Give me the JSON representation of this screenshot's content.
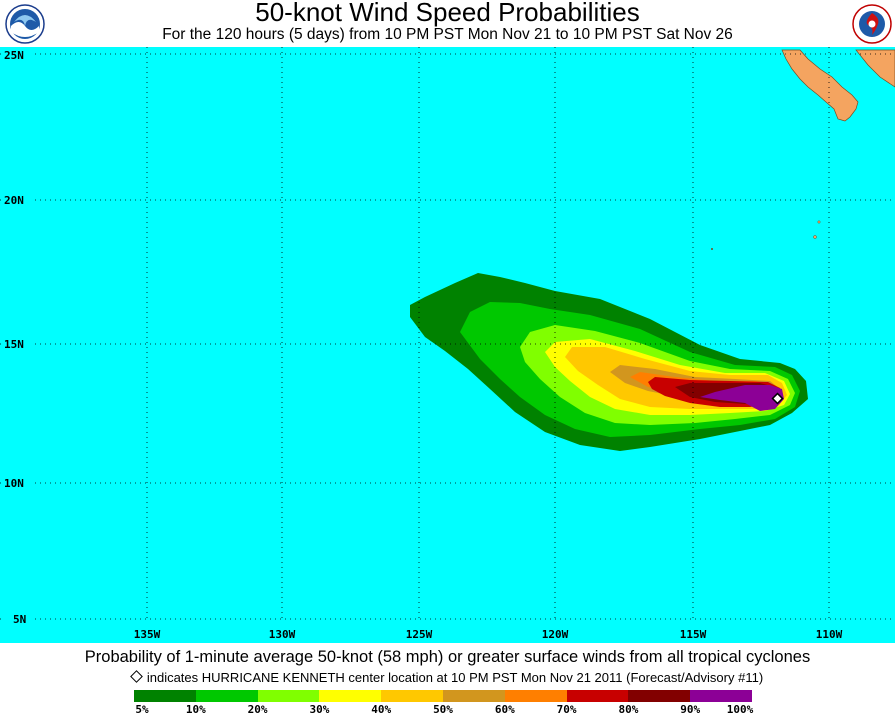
{
  "title": "50-knot Wind Speed Probabilities",
  "subtitle": "For the 120 hours (5 days) from 10 PM PST Mon Nov 21 to 10 PM PST Sat Nov 26",
  "logos": {
    "left": "noaa-logo",
    "right": "nws-logo"
  },
  "map": {
    "ocean_color": "#00ffff",
    "land_color": "#f4a460",
    "lat_labels": [
      "25N",
      "20N",
      "15N",
      "10N",
      "5N"
    ],
    "lon_labels": [
      "135W",
      "130W",
      "125W",
      "120W",
      "115W",
      "110W"
    ],
    "storm_marker": {
      "name": "HURRICANE KENNETH",
      "lon": -112,
      "lat": 13,
      "icon": "diamond-icon"
    }
  },
  "caption": "Probability of 1-minute average 50-knot (58 mph) or greater surface winds from all tropical cyclones",
  "note": "indicates HURRICANE KENNETH center location at 10 PM PST Mon Nov 21 2011 (Forecast/Advisory #11)",
  "legend": {
    "bins": [
      {
        "color": "#008200"
      },
      {
        "color": "#00c800"
      },
      {
        "color": "#80ff00"
      },
      {
        "color": "#ffff00"
      },
      {
        "color": "#ffc800"
      },
      {
        "color": "#d2961e"
      },
      {
        "color": "#ff7f00"
      },
      {
        "color": "#c80000"
      },
      {
        "color": "#820000"
      },
      {
        "color": "#8c0096"
      }
    ],
    "labels": [
      "5%",
      "10%",
      "20%",
      "30%",
      "40%",
      "50%",
      "60%",
      "70%",
      "80%",
      "90%",
      "100%"
    ]
  }
}
